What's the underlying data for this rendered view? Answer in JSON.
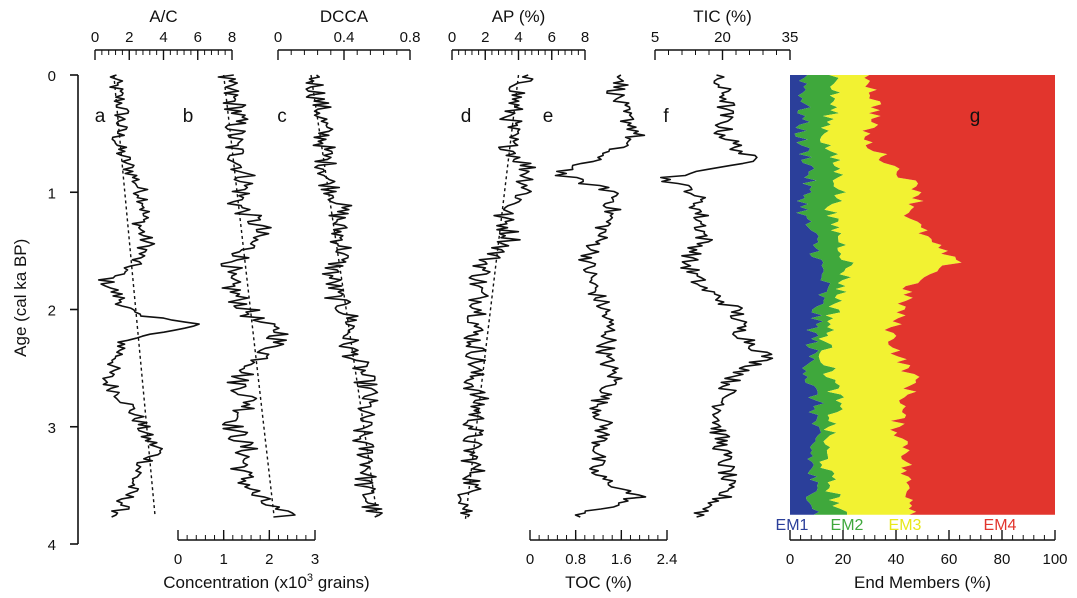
{
  "chart_data": {
    "type": "line",
    "y_axis": {
      "label": "Age (cal ka BP)",
      "range": [
        0,
        4
      ],
      "ticks": [
        0,
        1,
        2,
        3,
        4
      ],
      "inverted": true
    },
    "panels": [
      {
        "id": "a",
        "letter": "a",
        "axis_title": "A/C",
        "axis_position": "top",
        "range": [
          0,
          8
        ],
        "ticks": [
          "0",
          "2",
          "4",
          "6",
          "8"
        ],
        "tick_values": [
          0,
          2,
          4,
          6,
          8
        ],
        "trend": {
          "age": [
            0,
            3.75
          ],
          "value": [
            1.1,
            3.5
          ]
        },
        "anchors": {
          "age": [
            0.05,
            0.3,
            0.6,
            0.9,
            1.1,
            1.3,
            1.45,
            1.65,
            1.75,
            1.9,
            2.05,
            2.12,
            2.25,
            2.45,
            2.6,
            2.8,
            2.95,
            3.1,
            3.2,
            3.35,
            3.5,
            3.7,
            3.77
          ],
          "value": [
            1.1,
            1.6,
            1.3,
            2.4,
            3.0,
            2.6,
            3.1,
            2.0,
            0.6,
            1.4,
            2.2,
            6.5,
            1.8,
            1.2,
            0.6,
            1.9,
            2.6,
            3.0,
            3.8,
            2.6,
            2.2,
            1.5,
            1.3
          ]
        },
        "amplitude": 0.5
      },
      {
        "id": "b",
        "letter": "b",
        "axis_title": "",
        "axis_position": "bottom",
        "axis_group": "concentration",
        "range": [
          0,
          3
        ],
        "trend": {
          "age": [
            0,
            3.75
          ],
          "value": [
            1.0,
            2.1
          ]
        },
        "anchors": {
          "age": [
            0.05,
            0.3,
            0.6,
            0.9,
            1.1,
            1.3,
            1.5,
            1.7,
            1.9,
            2.1,
            2.2,
            2.45,
            2.6,
            2.8,
            3.0,
            3.2,
            3.4,
            3.6,
            3.75
          ],
          "value": [
            1.0,
            1.3,
            1.2,
            1.5,
            1.3,
            1.8,
            1.5,
            1.0,
            1.3,
            1.7,
            2.3,
            1.8,
            1.3,
            1.6,
            1.2,
            1.5,
            1.4,
            1.7,
            2.3
          ]
        },
        "amplitude": 0.28
      },
      {
        "id": "c",
        "letter": "c",
        "axis_title": "DCCA",
        "axis_position": "top",
        "range": [
          0,
          0.8
        ],
        "ticks": [
          "0",
          "0.4",
          "0.8"
        ],
        "tick_values": [
          0,
          0.4,
          0.8
        ],
        "trend": {
          "age": [
            0,
            3.75
          ],
          "value": [
            0.2,
            0.6
          ]
        },
        "anchors": {
          "age": [
            0.05,
            0.3,
            0.6,
            0.9,
            1.1,
            1.3,
            1.5,
            1.7,
            1.9,
            2.1,
            2.3,
            2.5,
            2.7,
            2.9,
            3.1,
            3.3,
            3.5,
            3.75
          ],
          "value": [
            0.22,
            0.26,
            0.28,
            0.3,
            0.38,
            0.36,
            0.4,
            0.32,
            0.35,
            0.45,
            0.42,
            0.5,
            0.55,
            0.52,
            0.5,
            0.56,
            0.52,
            0.58
          ]
        },
        "amplitude": 0.07
      },
      {
        "id": "d",
        "letter": "d",
        "axis_title": "AP (%)",
        "axis_position": "top",
        "range": [
          0,
          8
        ],
        "ticks": [
          "0",
          "2",
          "4",
          "6",
          "8"
        ],
        "tick_values": [
          0,
          2,
          4,
          6,
          8
        ],
        "trend": {
          "age": [
            0,
            3.8
          ],
          "value": [
            4.0,
            0.8
          ]
        },
        "anchors": {
          "age": [
            0.05,
            0.3,
            0.6,
            0.8,
            1.0,
            1.2,
            1.4,
            1.6,
            1.8,
            2.0,
            2.2,
            2.4,
            2.6,
            2.8,
            3.0,
            3.2,
            3.4,
            3.6,
            3.77
          ],
          "value": [
            4.2,
            3.6,
            3.4,
            4.6,
            4.5,
            3.0,
            3.6,
            2.0,
            1.5,
            1.8,
            1.3,
            1.5,
            1.2,
            1.6,
            1.3,
            1.1,
            1.4,
            1.0,
            0.8
          ]
        },
        "amplitude": 0.7
      },
      {
        "id": "e",
        "letter": "e",
        "axis_title": "TOC (%)",
        "axis_position": "bottom",
        "range": [
          0,
          2.4
        ],
        "ticks": [
          "0",
          "0.8",
          "1.6",
          "2.4"
        ],
        "tick_values": [
          0,
          0.8,
          1.6,
          2.4
        ],
        "anchors": {
          "age": [
            0.0,
            0.15,
            0.3,
            0.5,
            0.65,
            0.85,
            1.0,
            1.2,
            1.4,
            1.6,
            1.8,
            2.0,
            2.2,
            2.4,
            2.6,
            2.8,
            3.0,
            3.2,
            3.4,
            3.6,
            3.75
          ],
          "value": [
            1.7,
            1.5,
            1.6,
            1.9,
            1.4,
            0.5,
            1.5,
            1.4,
            1.2,
            1.0,
            1.1,
            1.3,
            1.4,
            1.3,
            1.5,
            1.2,
            1.3,
            1.2,
            1.1,
            1.9,
            0.9
          ]
        },
        "amplitude": 0.17
      },
      {
        "id": "f",
        "letter": "f",
        "axis_title": "TIC (%)",
        "axis_position": "top",
        "range": [
          5,
          35
        ],
        "ticks": [
          "5",
          "20",
          "35"
        ],
        "tick_values": [
          5,
          20,
          35
        ],
        "anchors": {
          "age": [
            0.0,
            0.2,
            0.5,
            0.75,
            0.88,
            1.0,
            1.2,
            1.4,
            1.6,
            1.8,
            2.0,
            2.2,
            2.4,
            2.6,
            2.8,
            3.0,
            3.2,
            3.4,
            3.6,
            3.75
          ],
          "value": [
            18,
            21,
            20,
            27,
            7,
            14,
            15,
            16,
            12,
            15,
            23,
            24,
            30,
            22,
            20,
            19,
            20,
            21,
            20,
            15
          ]
        },
        "amplitude": 2.2
      },
      {
        "id": "g",
        "letter": "g",
        "type": "stacked-area",
        "axis_title": "End Members (%)",
        "axis_position": "bottom",
        "range": [
          0,
          100
        ],
        "ticks": [
          "0",
          "20",
          "40",
          "60",
          "80",
          "100"
        ],
        "tick_values": [
          0,
          20,
          40,
          60,
          80,
          100
        ],
        "series": [
          {
            "name": "EM1",
            "color": "#2b3f9a",
            "age": [
              0.0,
              0.3,
              0.55,
              0.8,
              1.0,
              1.2,
              1.4,
              1.6,
              1.8,
              2.0,
              2.2,
              2.4,
              2.6,
              2.8,
              3.0,
              3.2,
              3.4,
              3.6,
              3.75
            ],
            "cum": [
              6,
              5,
              4,
              8,
              6,
              5,
              9,
              11,
              13,
              10,
              9,
              8,
              7,
              10,
              9,
              8,
              8,
              9,
              10
            ]
          },
          {
            "name": "EM2",
            "color": "#3fa83c",
            "age": [
              0.0,
              0.3,
              0.55,
              0.8,
              1.0,
              1.2,
              1.4,
              1.6,
              1.8,
              2.0,
              2.2,
              2.4,
              2.6,
              2.8,
              3.0,
              3.2,
              3.4,
              3.6,
              3.75
            ],
            "cum": [
              17,
              16,
              13,
              18,
              19,
              15,
              19,
              22,
              20,
              17,
              14,
              13,
              16,
              18,
              15,
              13,
              14,
              17,
              19
            ]
          },
          {
            "name": "EM3",
            "color": "#f2f232",
            "age": [
              0.0,
              0.3,
              0.55,
              0.8,
              1.0,
              1.2,
              1.4,
              1.6,
              1.8,
              2.0,
              2.2,
              2.4,
              2.6,
              2.8,
              3.0,
              3.2,
              3.4,
              3.6,
              3.75
            ],
            "cum": [
              30,
              33,
              28,
              40,
              50,
              45,
              52,
              62,
              45,
              42,
              38,
              41,
              47,
              43,
              40,
              45,
              43,
              46,
              48
            ]
          },
          {
            "name": "EM4",
            "color": "#e2352d",
            "age": [
              0.0,
              3.75
            ],
            "cum": [
              100,
              100
            ]
          }
        ]
      }
    ],
    "shared_axes": [
      {
        "id": "concentration",
        "title": "Concentration (x10",
        "title_sup": "3",
        "title_end": " grains)",
        "range": [
          0,
          3
        ],
        "ticks": [
          "0",
          "1",
          "2",
          "3"
        ],
        "tick_values": [
          0,
          1,
          2,
          3
        ]
      }
    ],
    "legend": {
      "placement": "bottom of panel g",
      "items": [
        {
          "name": "EM1",
          "color": "#2b3f9a"
        },
        {
          "name": "EM2",
          "color": "#3fa83c"
        },
        {
          "name": "EM3",
          "color": "#f2f232"
        },
        {
          "name": "EM4",
          "color": "#e2352d"
        }
      ]
    },
    "grid": false
  }
}
